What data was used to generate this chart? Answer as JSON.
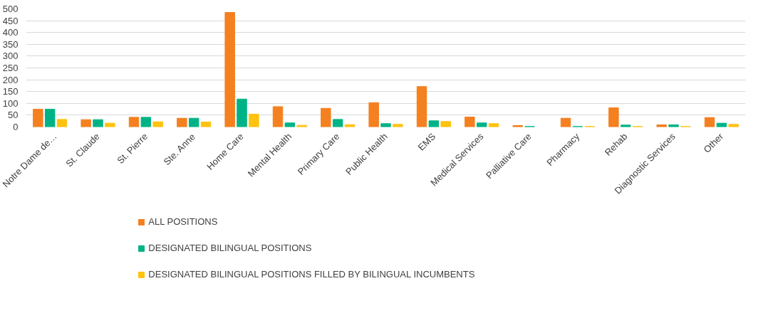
{
  "chart_data": {
    "type": "bar",
    "categories": [
      "Notre Dame de…",
      "St. Claude",
      "St. Pierre",
      "Ste. Anne",
      "Home Care",
      "Mental Health",
      "Primary Care",
      "Public Health",
      "EMS",
      "Medical Services",
      "Palliative Care",
      "Pharmacy",
      "Rehab",
      "Diagnostic Services",
      "Other"
    ],
    "series": [
      {
        "name": "ALL POSITIONS",
        "color": "#f48020",
        "values": [
          75,
          31,
          41,
          37,
          485,
          86,
          79,
          103,
          171,
          42,
          6,
          37,
          81,
          9,
          40
        ]
      },
      {
        "name": "DESIGNATED BILINGUAL POSITIONS",
        "color": "#00b386",
        "values": [
          75,
          31,
          41,
          37,
          118,
          17,
          32,
          14,
          26,
          17,
          2,
          2,
          8,
          9,
          16
        ]
      },
      {
        "name": "DESIGNATED BILINGUAL POSITIONS FILLED BY BILINGUAL INCUMBENTS",
        "color": "#ffc20e",
        "values": [
          32,
          16,
          22,
          21,
          54,
          7,
          10,
          11,
          23,
          14,
          null,
          2,
          2,
          2,
          11
        ]
      }
    ],
    "ylim": [
      0,
      500
    ],
    "yticks": [
      0,
      50,
      100,
      150,
      200,
      250,
      300,
      350,
      400,
      450,
      500
    ],
    "grid": "y",
    "legend": "bottom"
  }
}
